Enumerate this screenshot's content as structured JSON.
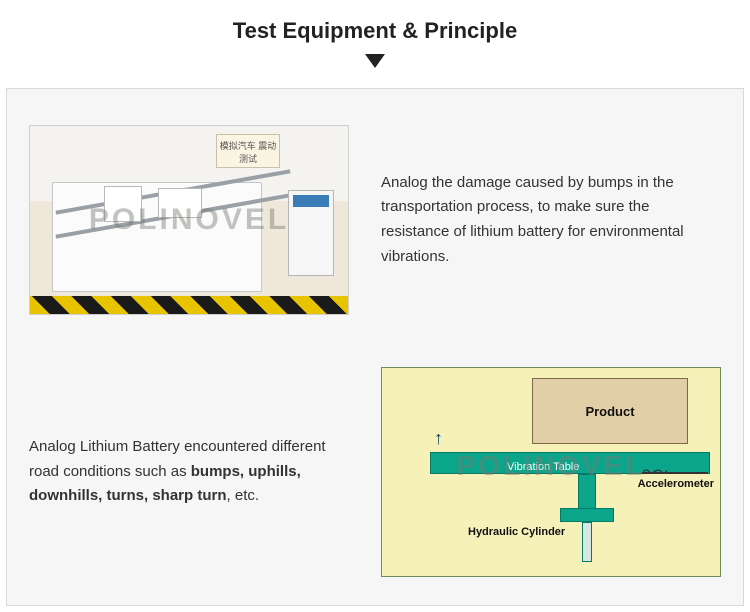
{
  "title": "Test Equipment & Principle",
  "watermark": "POLINOVEL",
  "photo": {
    "sign_text": "模拟汽车\n震动测试"
  },
  "section1": {
    "text": "Analog the damage caused by bumps in the transportation process, to make sure the resistance of lithium battery for environmental vibrations."
  },
  "section2": {
    "prefix": "Analog Lithium Battery encountered different road conditions such as ",
    "bold": "bumps, uphills, downhills, turns, sharp turn",
    "suffix": ", etc."
  },
  "diagram": {
    "product_label": "Product",
    "vibration_table_label": "Vibration Table",
    "accelerometer_label": "Accelerometer",
    "hydraulic_label": "Hydraulic Cylinder",
    "background_color": "#f6f0b9",
    "table_color": "#0aa58a",
    "product_color": "#e3cfa7"
  }
}
